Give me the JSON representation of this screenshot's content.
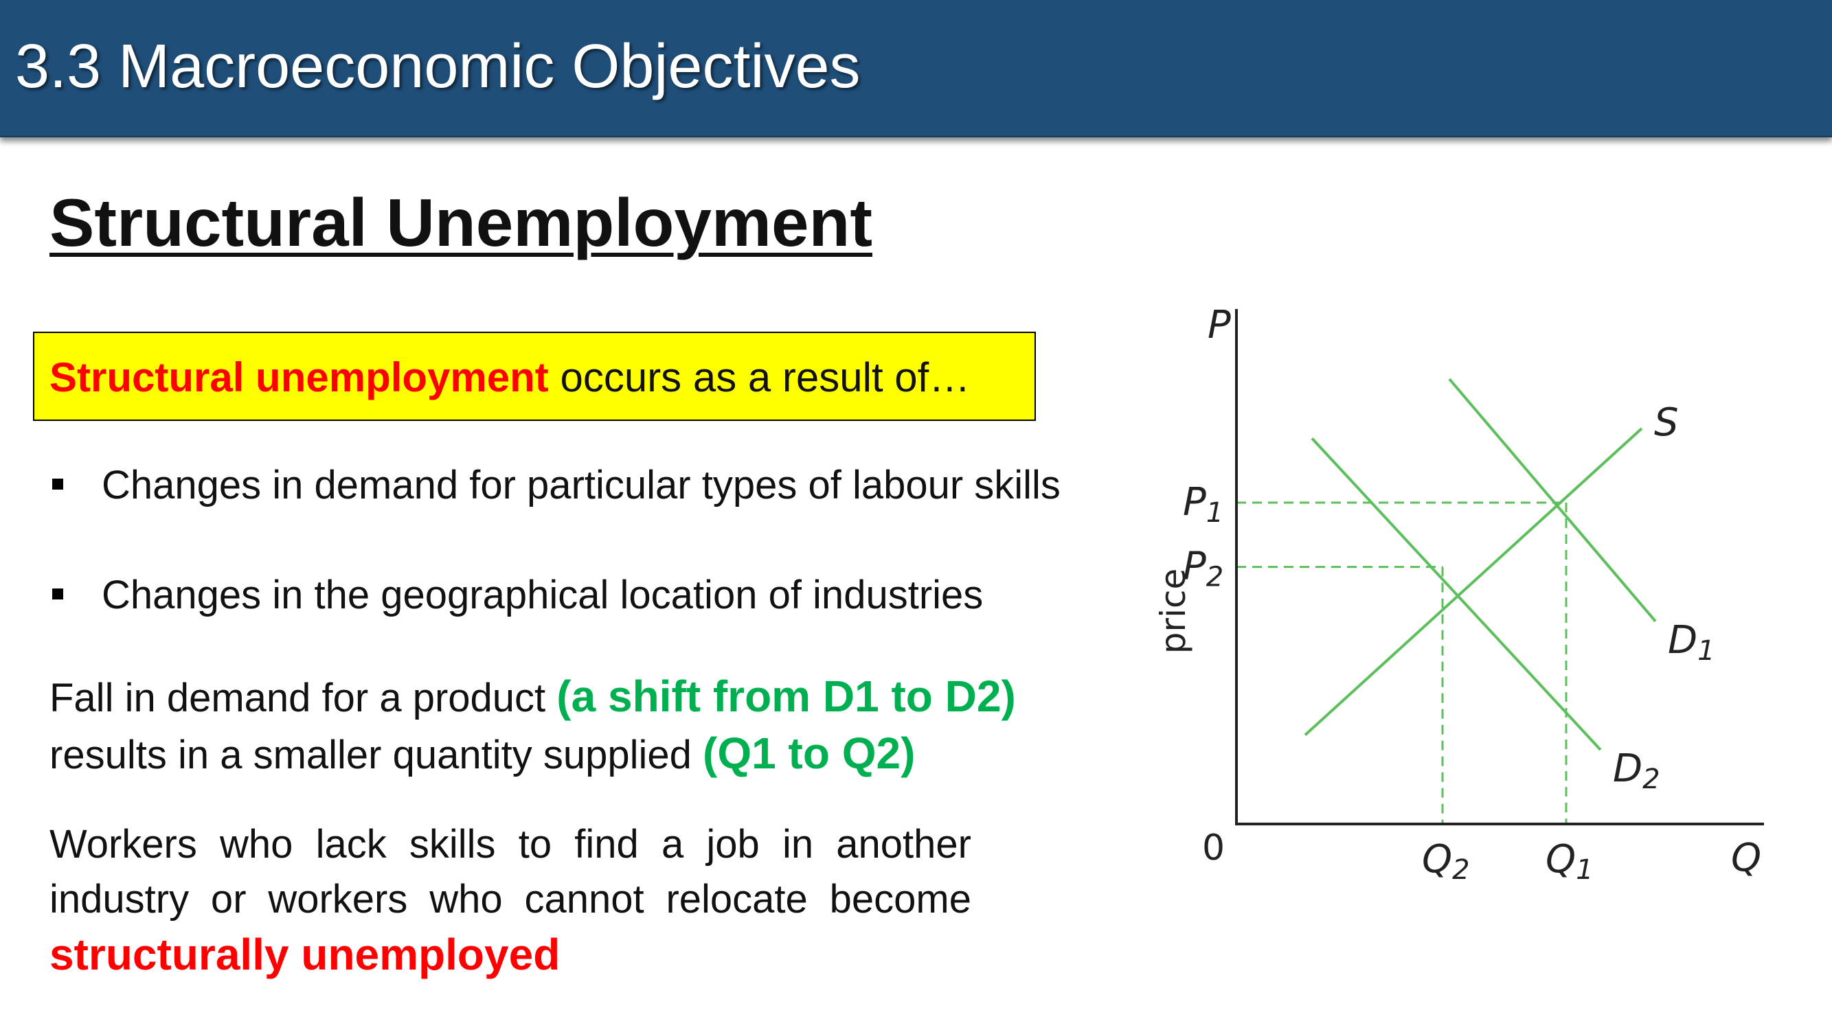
{
  "header": {
    "title": "3.3 Macroeconomic Objectives"
  },
  "heading": "Structural Unemployment",
  "definition": {
    "term": "Structural unemployment",
    "rest": " occurs as a result of…"
  },
  "bullets": [
    "Changes in demand for particular types of labour skills",
    "Changes in the geographical location of industries"
  ],
  "paragraph1": {
    "line1_text": "Fall in demand for a product ",
    "line1_highlight": "(a shift from D1 to D2)",
    "line2_text": "results in a smaller quantity supplied ",
    "line2_highlight": "(Q1 to Q2)"
  },
  "paragraph2": {
    "text": "Workers who lack skills to find a job in another industry or workers who cannot relocate become",
    "highlight": "structurally unemployed"
  },
  "chart_data": {
    "type": "line",
    "ylabel": "price",
    "y_axis_symbol": "P",
    "x_axis_symbol": "Q",
    "origin_label": "0",
    "series": [
      {
        "name": "S",
        "points": [
          [
            1.0,
            1.8
          ],
          [
            5.9,
            8.0
          ]
        ]
      },
      {
        "name": "D1",
        "points": [
          [
            3.1,
            9.0
          ],
          [
            6.1,
            4.1
          ]
        ]
      },
      {
        "name": "D2",
        "points": [
          [
            1.1,
            7.8
          ],
          [
            5.3,
            1.5
          ]
        ]
      }
    ],
    "equilibria": [
      {
        "label_q": "Q1",
        "label_p": "P1",
        "q": 4.8,
        "p": 6.5
      },
      {
        "label_q": "Q2",
        "label_p": "P2",
        "q": 3.0,
        "p": 5.2
      }
    ],
    "xlim": [
      0,
      7.6
    ],
    "ylim": [
      0,
      10
    ],
    "colors": {
      "curves": "#5cbf5c",
      "axes": "#222222"
    }
  }
}
